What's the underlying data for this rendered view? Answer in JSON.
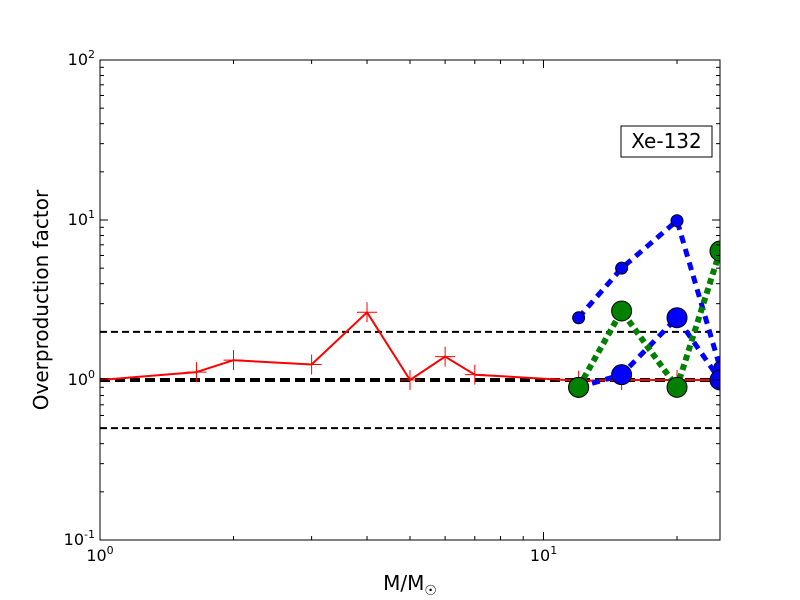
{
  "chart_data": {
    "type": "line",
    "x_scale": "log",
    "y_scale": "log",
    "xlim": [
      1,
      25
    ],
    "ylim": [
      0.1,
      100
    ],
    "xlabel_main": "M/M",
    "xlabel_sub": "☉",
    "ylabel": "Overproduction factor",
    "annotation": "Xe-132",
    "x_ticks": [
      {
        "value": 1,
        "base": "10",
        "exp": "0"
      },
      {
        "value": 10,
        "base": "10",
        "exp": "1"
      }
    ],
    "y_ticks": [
      {
        "value": 0.1,
        "base": "10",
        "exp": "-1"
      },
      {
        "value": 1,
        "base": "10",
        "exp": "0"
      },
      {
        "value": 10,
        "base": "10",
        "exp": "1"
      },
      {
        "value": 100,
        "base": "10",
        "exp": "2"
      }
    ],
    "reference_lines": [
      {
        "y": 2,
        "style": "dashed",
        "color": "#000000",
        "weight": "thin"
      },
      {
        "y": 1,
        "style": "dashed",
        "color": "#000000",
        "weight": "thick"
      },
      {
        "y": 0.5,
        "style": "dashed",
        "color": "#000000",
        "weight": "thin"
      }
    ],
    "series": [
      {
        "color": "#ff0000",
        "line": "solid",
        "marker": "plus",
        "x": [
          1,
          1.65,
          2,
          3,
          4,
          5,
          6,
          7,
          12,
          15,
          20,
          25
        ],
        "y": [
          1.0,
          1.12,
          1.33,
          1.25,
          2.65,
          1.0,
          1.4,
          1.08,
          0.99,
          1.0,
          1.0,
          1.0
        ]
      },
      {
        "color": "#0000ff",
        "line": "dashed",
        "marker": "circle",
        "marker_size": "small",
        "x": [
          12,
          15,
          20,
          25
        ],
        "y": [
          2.45,
          5.0,
          9.9,
          1.2
        ]
      },
      {
        "color": "#0000ff",
        "line": "dashed",
        "marker": "circle",
        "marker_size": "large",
        "x": [
          12,
          15,
          20,
          25
        ],
        "y": [
          0.9,
          1.08,
          2.45,
          1.0
        ]
      },
      {
        "color": "#008000",
        "line": "dotted",
        "marker": "circle",
        "marker_size": "large",
        "x": [
          12,
          15,
          20,
          25
        ],
        "y": [
          0.9,
          2.7,
          0.9,
          6.4
        ]
      }
    ]
  }
}
